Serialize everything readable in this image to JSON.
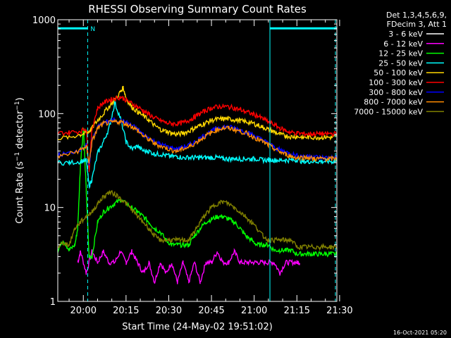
{
  "chart_data": {
    "type": "line",
    "title": "RHESSI Observing Summary Count Rates",
    "xlabel": "Start Time (24-May-02 19:51:02)",
    "ylabel_prefix": "Count Rate (s",
    "ylabel_sup1": "−1",
    "ylabel_mid": " detector",
    "ylabel_sup2": "−1",
    "ylabel_suffix": ")",
    "yscale": "log",
    "xlim_minutes": [
      0,
      98
    ],
    "ylim": [
      1,
      1000
    ],
    "x_ticks": [
      {
        "label": "20:00",
        "minute": 8.97
      },
      {
        "label": "20:15",
        "minute": 23.97
      },
      {
        "label": "20:30",
        "minute": 38.97
      },
      {
        "label": "20:45",
        "minute": 53.97
      },
      {
        "label": "21:00",
        "minute": 68.97
      },
      {
        "label": "21:15",
        "minute": 83.97
      },
      {
        "label": "21:30",
        "minute": 98.97
      }
    ],
    "y_ticks": [
      {
        "label": "1",
        "value": 1
      },
      {
        "label": "10",
        "value": 10
      },
      {
        "label": "100",
        "value": 100
      },
      {
        "label": "1000",
        "value": 1000
      }
    ],
    "legend_header": [
      "Det 1,3,4,5,6,9,",
      "FDecim 3, Att 1"
    ],
    "legend_position": "top-right",
    "flag_label": "N",
    "series": [
      {
        "name": "3 - 6 keV",
        "color": "#ffffff",
        "x": [
          0,
          98
        ],
        "y": [
          null,
          null
        ]
      },
      {
        "name": "6 - 12 keV",
        "color": "#ff00ff",
        "x": [
          7,
          8,
          10,
          12,
          14,
          16,
          18,
          20,
          22,
          24,
          26,
          28,
          30,
          32,
          34,
          36,
          38,
          40,
          42,
          44,
          46,
          48,
          50,
          52,
          54,
          56,
          58,
          60,
          62,
          64,
          66,
          68,
          70,
          72,
          74,
          76,
          78,
          80,
          82,
          84,
          85
        ],
        "y": [
          2.6,
          3.4,
          2.0,
          3.4,
          2.6,
          3.4,
          2.6,
          2.6,
          3.4,
          2.6,
          3.4,
          2.6,
          2.0,
          2.6,
          1.6,
          2.6,
          2.0,
          2.6,
          1.6,
          2.6,
          1.6,
          2.6,
          1.6,
          2.6,
          2.6,
          3.4,
          2.6,
          2.6,
          3.4,
          2.6,
          2.6,
          2.6,
          2.6,
          2.6,
          2.6,
          2.6,
          2.0,
          2.6,
          2.6,
          2.6,
          2.6
        ]
      },
      {
        "name": "12 - 25 keV",
        "color": "#00ff00",
        "x": [
          0,
          2,
          4,
          6,
          7,
          8,
          9,
          10,
          11,
          12,
          14,
          16,
          18,
          20,
          22,
          24,
          26,
          28,
          30,
          32,
          34,
          36,
          38,
          40,
          42,
          44,
          46,
          48,
          50,
          52,
          54,
          56,
          58,
          60,
          62,
          64,
          66,
          68,
          70,
          72,
          74,
          76,
          78,
          80,
          82,
          84,
          86,
          88,
          90,
          92,
          94,
          96,
          98
        ],
        "y": [
          3.5,
          4.5,
          3.5,
          4.0,
          6,
          30,
          70,
          15,
          3,
          3,
          7,
          9,
          10,
          11,
          12,
          11,
          10,
          9,
          8,
          7,
          6,
          5.5,
          4.5,
          4,
          4,
          4,
          4,
          5,
          6,
          7,
          7.5,
          8,
          8,
          7.5,
          7,
          6,
          5,
          4.5,
          4,
          4,
          4,
          3.5,
          3.5,
          3.5,
          3.5,
          3.2,
          3.2,
          3.2,
          3.2,
          3.2,
          3.2,
          3.2,
          3.2
        ]
      },
      {
        "name": "25 - 50 keV",
        "color": "#00ffff",
        "x": [
          0,
          4,
          8,
          10,
          11,
          12,
          14,
          16,
          18,
          20,
          22,
          24,
          26,
          28,
          30,
          32,
          34,
          36,
          38,
          40,
          42,
          44,
          46,
          48,
          50,
          52,
          54,
          56,
          58,
          60,
          62,
          64,
          66,
          68,
          70,
          72,
          74,
          76,
          78,
          80,
          82,
          84,
          86,
          88,
          90,
          92,
          94,
          96,
          98
        ],
        "y": [
          30,
          30,
          31,
          32,
          17,
          20,
          38,
          50,
          70,
          130,
          90,
          50,
          42,
          45,
          40,
          40,
          37,
          37,
          36,
          35,
          35,
          34,
          34,
          34,
          34,
          34,
          34,
          34,
          33,
          33,
          33,
          33,
          33,
          33,
          33,
          32,
          32,
          32,
          32,
          32,
          32,
          32,
          31,
          31,
          31,
          31,
          31,
          31,
          31
        ]
      },
      {
        "name": "50 - 100 keV",
        "color": "#ffd700",
        "x": [
          0,
          4,
          8,
          10,
          11,
          12,
          14,
          16,
          18,
          20,
          22,
          23,
          24,
          26,
          28,
          30,
          32,
          34,
          36,
          38,
          40,
          42,
          44,
          46,
          48,
          50,
          52,
          54,
          56,
          58,
          60,
          62,
          64,
          66,
          68,
          70,
          72,
          74,
          76,
          78,
          80,
          82,
          84,
          86,
          88,
          90,
          92,
          94,
          96,
          98
        ],
        "y": [
          55,
          56,
          60,
          62,
          65,
          70,
          85,
          100,
          120,
          140,
          170,
          190,
          145,
          118,
          105,
          95,
          85,
          75,
          68,
          65,
          62,
          60,
          62,
          65,
          70,
          75,
          80,
          85,
          87,
          88,
          88,
          86,
          84,
          82,
          80,
          76,
          72,
          68,
          64,
          60,
          58,
          57,
          57,
          56,
          56,
          56,
          56,
          56,
          56,
          56
        ]
      },
      {
        "name": "100 - 300 keV",
        "color": "#ff0000",
        "x": [
          0,
          4,
          8,
          10,
          11,
          12,
          14,
          16,
          18,
          20,
          22,
          24,
          26,
          28,
          30,
          32,
          34,
          36,
          38,
          40,
          42,
          44,
          46,
          48,
          50,
          52,
          54,
          56,
          58,
          60,
          62,
          64,
          66,
          68,
          70,
          72,
          74,
          76,
          78,
          80,
          82,
          84,
          86,
          88,
          90,
          92,
          94,
          96,
          98
        ],
        "y": [
          62,
          63,
          65,
          70,
          25,
          68,
          115,
          130,
          140,
          145,
          150,
          140,
          128,
          118,
          108,
          98,
          90,
          85,
          80,
          78,
          78,
          80,
          85,
          92,
          100,
          108,
          115,
          118,
          120,
          118,
          115,
          110,
          105,
          100,
          95,
          88,
          82,
          76,
          70,
          66,
          63,
          62,
          61,
          61,
          61,
          61,
          61,
          61,
          61
        ]
      },
      {
        "name": "300 - 800 keV",
        "color": "#0000ff",
        "x": [
          0,
          4,
          8,
          10,
          11,
          12,
          14,
          16,
          18,
          20,
          22,
          24,
          26,
          28,
          30,
          32,
          34,
          36,
          38,
          40,
          42,
          44,
          46,
          48,
          50,
          52,
          54,
          56,
          58,
          60,
          62,
          64,
          66,
          68,
          70,
          72,
          74,
          76,
          78,
          80,
          82,
          84,
          86,
          88,
          90,
          92,
          94,
          96,
          98
        ],
        "y": [
          36,
          38,
          42,
          46,
          28,
          52,
          72,
          80,
          82,
          85,
          84,
          80,
          75,
          68,
          60,
          55,
          50,
          47,
          45,
          43,
          42,
          44,
          46,
          50,
          55,
          60,
          65,
          70,
          72,
          72,
          70,
          67,
          64,
          60,
          56,
          52,
          48,
          44,
          41,
          39,
          37,
          36,
          35,
          35,
          35,
          34,
          34,
          34,
          34
        ]
      },
      {
        "name": "800 - 7000 keV",
        "color": "#ff8c00",
        "x": [
          0,
          4,
          8,
          10,
          11,
          12,
          14,
          16,
          18,
          20,
          22,
          24,
          26,
          28,
          30,
          32,
          34,
          36,
          38,
          40,
          42,
          44,
          46,
          48,
          50,
          52,
          54,
          56,
          58,
          60,
          62,
          64,
          66,
          68,
          70,
          72,
          74,
          76,
          78,
          80,
          82,
          84,
          86,
          88,
          90,
          92,
          94,
          96,
          98
        ],
        "y": [
          35,
          37,
          41,
          45,
          30,
          50,
          70,
          78,
          80,
          82,
          82,
          78,
          73,
          66,
          58,
          53,
          48,
          45,
          43,
          41,
          40,
          42,
          44,
          48,
          53,
          58,
          63,
          68,
          70,
          70,
          68,
          65,
          62,
          58,
          54,
          50,
          46,
          42,
          39,
          37,
          35,
          34,
          34,
          34,
          33,
          33,
          33,
          33,
          33
        ]
      },
      {
        "name": "7000 - 15000 keV",
        "color": "#808000",
        "x": [
          0,
          2,
          4,
          6,
          8,
          10,
          12,
          14,
          16,
          18,
          20,
          22,
          24,
          26,
          28,
          30,
          32,
          34,
          36,
          38,
          40,
          42,
          44,
          46,
          48,
          50,
          52,
          54,
          56,
          58,
          60,
          62,
          64,
          66,
          68,
          70,
          72,
          74,
          76,
          78,
          80,
          82,
          84,
          86,
          88,
          90,
          92,
          94,
          96,
          98
        ],
        "y": [
          3.8,
          4.2,
          4.0,
          6.0,
          7.0,
          8.0,
          9.0,
          11.0,
          13.0,
          14.5,
          14.0,
          12.5,
          11.0,
          9.5,
          8.0,
          7.0,
          6.0,
          5.0,
          4.5,
          4.5,
          4.5,
          4.5,
          4.5,
          4.5,
          5.5,
          7.0,
          8.5,
          10.0,
          11.0,
          11.5,
          11.0,
          10.0,
          9.0,
          8.0,
          7.0,
          6.0,
          5.0,
          4.5,
          4.5,
          4.5,
          4.5,
          4.5,
          3.8,
          3.8,
          3.8,
          3.8,
          3.8,
          3.8,
          3.8,
          3.8
        ]
      }
    ],
    "flags": {
      "color": "#00ffff",
      "segments": [
        [
          0,
          10.5
        ],
        [
          74.5,
          98
        ]
      ],
      "flag_level": 810,
      "vlines_solid_minutes": [
        74.5
      ],
      "vlines_dashed_minutes": [
        10.5,
        97.5
      ]
    }
  },
  "footer": {
    "date": "16-Oct-2021 05:20"
  }
}
